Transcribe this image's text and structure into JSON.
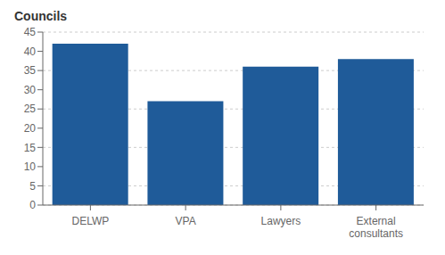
{
  "chart_data": {
    "type": "bar",
    "title": "Councils",
    "categories": [
      "DELWP",
      "VPA",
      "Lawyers",
      "External\nconsultants"
    ],
    "values": [
      42,
      27,
      36,
      38
    ],
    "color": "#1F5B99",
    "ylim": [
      0,
      45
    ],
    "yticks": [
      0,
      5,
      10,
      15,
      20,
      25,
      30,
      35,
      40,
      45
    ],
    "grid": true
  }
}
